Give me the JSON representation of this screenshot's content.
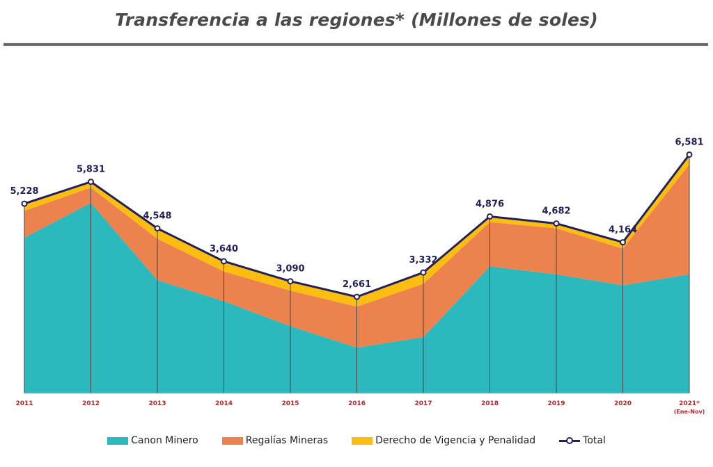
{
  "chart_data": {
    "type": "area",
    "title": "Transferencia a las regiones* (Millones de soles)",
    "categories": [
      "2011",
      "2012",
      "2013",
      "2014",
      "2015",
      "2016",
      "2017",
      "2018",
      "2019",
      "2020",
      "2021*"
    ],
    "category_sublabels": [
      "",
      "",
      "",
      "",
      "",
      "",
      "",
      "",
      "",
      "",
      "(Ene-Nov)"
    ],
    "stacked": true,
    "ylim": [
      0,
      7000
    ],
    "grid": false,
    "legend_position": "bottom",
    "series": [
      {
        "name": "Canon Minero",
        "type": "area",
        "color": "#2bb9bd",
        "values": [
          4290,
          5250,
          3120,
          2540,
          1850,
          1260,
          1550,
          3500,
          3280,
          2980,
          3280
        ]
      },
      {
        "name": "Regalías Mineras",
        "type": "area",
        "color": "#ec824d",
        "values": [
          740,
          420,
          1140,
          820,
          980,
          1130,
          1470,
          1220,
          1270,
          1010,
          3030
        ]
      },
      {
        "name": "Derecho de Vigencia y Penalidad",
        "type": "area",
        "color": "#fcbd11",
        "values": [
          198,
          161,
          288,
          280,
          260,
          271,
          312,
          156,
          132,
          174,
          271
        ]
      },
      {
        "name": "Total",
        "type": "line",
        "color": "#212157",
        "values": [
          5228,
          5831,
          4548,
          3640,
          3090,
          2661,
          3332,
          4876,
          4682,
          4164,
          6581
        ],
        "labels": [
          "5,228",
          "5,831",
          "4,548",
          "3,640",
          "3,090",
          "2,661",
          "3,332",
          "4,876",
          "4,682",
          "4,164",
          "6,581"
        ]
      }
    ]
  }
}
